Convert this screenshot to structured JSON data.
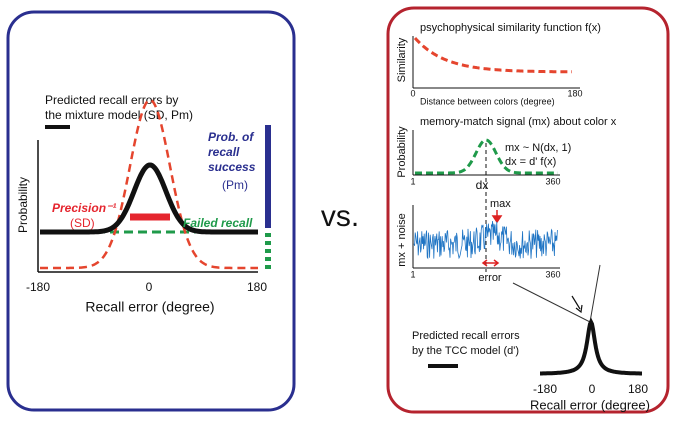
{
  "left_panel": {
    "legend_title": [
      "Predicted recall errors by",
      "the mixture model (SD, Pm)"
    ],
    "y_label": "Probability",
    "x_label": "Recall error (degree)",
    "x_ticks": [
      "-180",
      "0",
      "180"
    ],
    "precision_label": "Precision⁻¹",
    "precision_sub": "(SD)",
    "failed_label": "Failed recall",
    "success_label": [
      "Prob. of",
      "recall",
      "success"
    ],
    "success_sub": "(Pm)"
  },
  "separator": "vs.",
  "right_panel": {
    "similarity": {
      "title": "psychophysical similarity function f(x)",
      "y_label": "Similarity",
      "x_ticks": [
        "0",
        "180"
      ],
      "x_label": "Distance between colors (degree)"
    },
    "signal": {
      "title": "memory-match signal (mx) about color x",
      "y_label": "Probability",
      "x_ticks": [
        "1",
        "360"
      ],
      "dx_label": "dx",
      "equations": [
        "mx ~ N(dx, 1)",
        "dx = d' f(x)"
      ]
    },
    "noise": {
      "y_label": "mx + noise",
      "x_ticks": [
        "1",
        "360"
      ],
      "max_label": "max",
      "error_label": "error"
    },
    "prediction": {
      "legend_title": [
        "Predicted recall errors",
        "by the TCC model (d')"
      ],
      "x_ticks": [
        "-180",
        "0",
        "180"
      ],
      "x_label": "Recall error (degree)"
    }
  }
}
